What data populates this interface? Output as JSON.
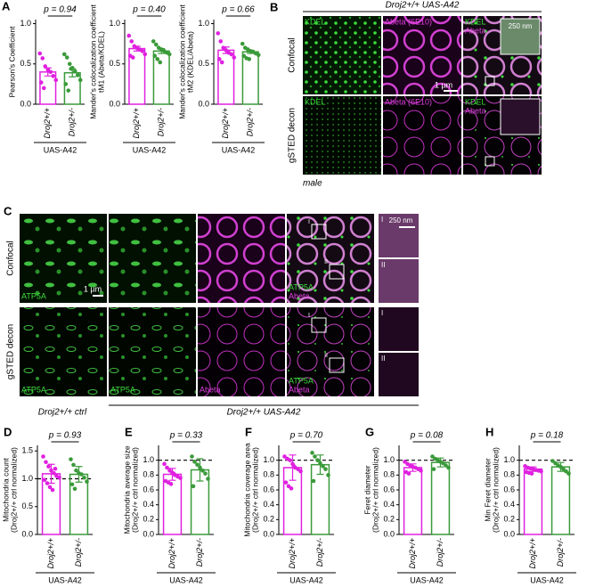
{
  "chart_data": [
    {
      "type": "bar",
      "panel": "A",
      "ylabel": [
        "Pearson's Coefficient"
      ],
      "categories": [
        "Droj2+/+",
        "Droj2+/-"
      ],
      "colors": [
        "#e020e0",
        "#3a9a3a"
      ],
      "values": [
        0.4,
        0.39
      ],
      "errors": [
        0.05,
        0.05
      ],
      "points": [
        [
          0.63,
          0.57,
          0.47,
          0.43,
          0.4,
          0.35,
          0.3,
          0.27,
          0.2
        ],
        [
          0.62,
          0.58,
          0.5,
          0.45,
          0.41,
          0.36,
          0.3,
          0.25,
          0.17,
          0.44
        ]
      ],
      "ylim": [
        0,
        1.05
      ],
      "yticks": [
        {
          "value": 0,
          "label": "0.0"
        },
        {
          "value": 0.5,
          "label": "0.5"
        },
        {
          "value": 1,
          "label": "1.0"
        }
      ],
      "annotation": "p = 0.94",
      "group_label": "UAS-A42"
    },
    {
      "type": "bar",
      "ylabel": [
        "Mander's colocalization coefficient",
        "tM1 (Abeta/KDEL)"
      ],
      "categories": [
        "Droj2+/+",
        "Droj2+/-"
      ],
      "colors": [
        "#e020e0",
        "#3a9a3a"
      ],
      "values": [
        0.69,
        0.66
      ],
      "errors": [
        0.03,
        0.03
      ],
      "points": [
        [
          0.85,
          0.78,
          0.72,
          0.7,
          0.68,
          0.66,
          0.62,
          0.6,
          0.58
        ],
        [
          0.78,
          0.74,
          0.7,
          0.68,
          0.66,
          0.64,
          0.62,
          0.6,
          0.56,
          0.52
        ]
      ],
      "ylim": [
        0,
        1.05
      ],
      "yticks": [
        {
          "value": 0,
          "label": "0.0"
        },
        {
          "value": 0.5,
          "label": "0.5"
        },
        {
          "value": 1,
          "label": "1.0"
        }
      ],
      "annotation": "p = 0.40",
      "group_label": "UAS-A42"
    },
    {
      "type": "bar",
      "ylabel": [
        "Mander's colocalization coefficient",
        "tM2 (KDEL/Abeta)"
      ],
      "categories": [
        "Droj2+/+",
        "Droj2+/-"
      ],
      "colors": [
        "#e020e0",
        "#3a9a3a"
      ],
      "values": [
        0.67,
        0.65
      ],
      "errors": [
        0.04,
        0.02
      ],
      "points": [
        [
          0.88,
          0.78,
          0.7,
          0.67,
          0.64,
          0.62,
          0.58,
          0.56,
          0.52
        ],
        [
          0.75,
          0.7,
          0.68,
          0.66,
          0.65,
          0.63,
          0.61,
          0.6,
          0.57,
          0.56
        ]
      ],
      "ylim": [
        0,
        1.05
      ],
      "yticks": [
        {
          "value": 0,
          "label": "0.0"
        },
        {
          "value": 0.5,
          "label": "0.5"
        },
        {
          "value": 1,
          "label": "1.0"
        }
      ],
      "annotation": "p = 0.66",
      "group_label": "UAS-A42"
    },
    {
      "type": "bar",
      "panel": "D",
      "ylabel": [
        "Mitochondria count",
        "(Droj2+/+ ctrl normalized)"
      ],
      "categories": [
        "Droj2+/+",
        "Droj2+/-"
      ],
      "colors": [
        "#e020e0",
        "#3a9a3a"
      ],
      "values": [
        1.09,
        1.08
      ],
      "errors": [
        0.17,
        0.14
      ],
      "points": [
        [
          1.4,
          1.3,
          1.22,
          1.15,
          1.1,
          1.05,
          1.02,
          0.98,
          0.92,
          0.85,
          0.8,
          1.18
        ],
        [
          1.35,
          1.25,
          1.15,
          1.1,
          1.08,
          1.02,
          0.95,
          0.9,
          0.82
        ]
      ],
      "ylim": [
        0,
        1.6
      ],
      "yticks": [
        {
          "value": 0,
          "label": "0.0"
        },
        {
          "value": 0.5,
          "label": "0.5"
        },
        {
          "value": 1,
          "label": "1.0"
        },
        {
          "value": 1.5,
          "label": "1.5"
        }
      ],
      "reference_line": 1,
      "annotation": "p = 0.93",
      "group_label": "UAS-A42"
    },
    {
      "type": "bar",
      "panel": "E",
      "ylabel": [
        "Mitochondria average size",
        "(Droj2+/+ ctrl normalized)"
      ],
      "categories": [
        "Droj2+/+",
        "Droj2+/-"
      ],
      "colors": [
        "#e020e0",
        "#3a9a3a"
      ],
      "values": [
        0.81,
        0.87
      ],
      "errors": [
        0.08,
        0.15
      ],
      "points": [
        [
          0.95,
          0.9,
          0.86,
          0.83,
          0.8,
          0.78,
          0.76,
          0.72,
          0.7,
          0.68,
          0.82
        ],
        [
          1.05,
          0.98,
          0.94,
          0.9,
          0.86,
          0.82,
          0.75,
          0.65
        ]
      ],
      "ylim": [
        0,
        1.2
      ],
      "yticks": [
        {
          "value": 0,
          "label": "0.0"
        },
        {
          "value": 0.2,
          "label": "0.2"
        },
        {
          "value": 0.4,
          "label": "0.4"
        },
        {
          "value": 0.6,
          "label": "0.6"
        },
        {
          "value": 0.8,
          "label": "0.8"
        },
        {
          "value": 1,
          "label": "1.0"
        }
      ],
      "reference_line": 1,
      "annotation": "p = 0.33",
      "group_label": "UAS-A42"
    },
    {
      "type": "bar",
      "panel": "F",
      "ylabel": [
        "Mitochondria coverage area",
        "(Droj2+/+ ctrl normalized)"
      ],
      "categories": [
        "Droj2+/+",
        "Droj2+/-"
      ],
      "colors": [
        "#e020e0",
        "#3a9a3a"
      ],
      "values": [
        0.9,
        0.94
      ],
      "errors": [
        0.17,
        0.13
      ],
      "points": [
        [
          1.05,
          1.02,
          1.0,
          0.95,
          0.9,
          0.88,
          0.85,
          0.7,
          0.65,
          0.62,
          0.92
        ],
        [
          1.1,
          1.05,
          1.0,
          0.96,
          0.92,
          0.88,
          0.8,
          0.72
        ]
      ],
      "ylim": [
        0,
        1.2
      ],
      "yticks": [
        {
          "value": 0,
          "label": "0.0"
        },
        {
          "value": 0.2,
          "label": "0.2"
        },
        {
          "value": 0.4,
          "label": "0.4"
        },
        {
          "value": 0.6,
          "label": "0.6"
        },
        {
          "value": 0.8,
          "label": "0.8"
        },
        {
          "value": 1,
          "label": "1.0"
        }
      ],
      "reference_line": 1,
      "annotation": "p = 0.70",
      "group_label": "UAS-A42"
    },
    {
      "type": "bar",
      "panel": "G",
      "ylabel": [
        "Feret diameter",
        "(Droj2+/+ ctrl normalized)"
      ],
      "categories": [
        "Droj2+/+",
        "Droj2+/-"
      ],
      "colors": [
        "#e020e0",
        "#3a9a3a"
      ],
      "values": [
        0.9,
        0.97
      ],
      "errors": [
        0.05,
        0.06
      ],
      "points": [
        [
          0.98,
          0.95,
          0.93,
          0.91,
          0.9,
          0.88,
          0.86,
          0.84,
          0.82
        ],
        [
          1.05,
          1.02,
          1.0,
          0.98,
          0.96,
          0.93,
          0.9,
          0.88
        ]
      ],
      "ylim": [
        0,
        1.2
      ],
      "yticks": [
        {
          "value": 0,
          "label": "0.0"
        },
        {
          "value": 0.2,
          "label": "0.2"
        },
        {
          "value": 0.4,
          "label": "0.4"
        },
        {
          "value": 0.6,
          "label": "0.6"
        },
        {
          "value": 0.8,
          "label": "0.8"
        },
        {
          "value": 1,
          "label": "1.0"
        }
      ],
      "reference_line": 1,
      "annotation": "p = 0.08",
      "group_label": "UAS-A42"
    },
    {
      "type": "bar",
      "panel": "H",
      "ylabel": [
        "Min Feret diameter",
        "(Droj2+/+ ctrl normalized)"
      ],
      "categories": [
        "Droj2+/+",
        "Droj2+/-"
      ],
      "colors": [
        "#e020e0",
        "#3a9a3a"
      ],
      "values": [
        0.88,
        0.91
      ],
      "errors": [
        0.03,
        0.06
      ],
      "points": [
        [
          0.92,
          0.9,
          0.89,
          0.88,
          0.87,
          0.86,
          0.85,
          0.84,
          0.83,
          0.82
        ],
        [
          0.99,
          0.96,
          0.93,
          0.91,
          0.88,
          0.85,
          0.82
        ]
      ],
      "ylim": [
        0,
        1.2
      ],
      "yticks": [
        {
          "value": 0,
          "label": "0.0"
        },
        {
          "value": 0.2,
          "label": "0.2"
        },
        {
          "value": 0.4,
          "label": "0.4"
        },
        {
          "value": 0.6,
          "label": "0.6"
        },
        {
          "value": 0.8,
          "label": "0.8"
        },
        {
          "value": 1,
          "label": "1.0"
        }
      ],
      "reference_line": 1,
      "annotation": "p = 0.18",
      "group_label": "UAS-A42"
    }
  ],
  "panel_b": {
    "letter": "B",
    "title": "Droj2+/+ UAS-A42",
    "rows": [
      {
        "label": "Confocal",
        "channel_labels": [
          [
            "KDEL"
          ],
          [
            "Abeta (6E10)"
          ],
          [
            "KDEL",
            "Abeta"
          ]
        ]
      },
      {
        "label": "gSTED decon",
        "channel_labels": [
          [
            "KDEL"
          ],
          [
            "Abeta (6E10)"
          ],
          [
            "KDEL",
            "Abeta"
          ]
        ]
      }
    ],
    "scale_bars": [
      "1 µm",
      "250 nm"
    ],
    "footer": "male"
  },
  "panel_c": {
    "letter": "C",
    "rows": [
      {
        "label": "Confocal",
        "channel_labels": [
          [
            "ATP5A"
          ],
          [
            "ATP5A",
            "Abeta"
          ]
        ],
        "inset_labels": [
          "I",
          "II"
        ]
      },
      {
        "label": "gSTED decon",
        "channel_labels": [
          [
            "ATP5A"
          ],
          [
            "ATP5A"
          ],
          [
            "Abeta"
          ],
          [
            "ATP5A",
            "Abeta"
          ]
        ],
        "inset_labels": [
          "I",
          "II"
        ]
      }
    ],
    "scale_bars": [
      "1 µm",
      "250 nm"
    ],
    "footer": [
      "Droj2+/+ ctrl",
      "Droj2+/+ UAS-A42"
    ]
  }
}
